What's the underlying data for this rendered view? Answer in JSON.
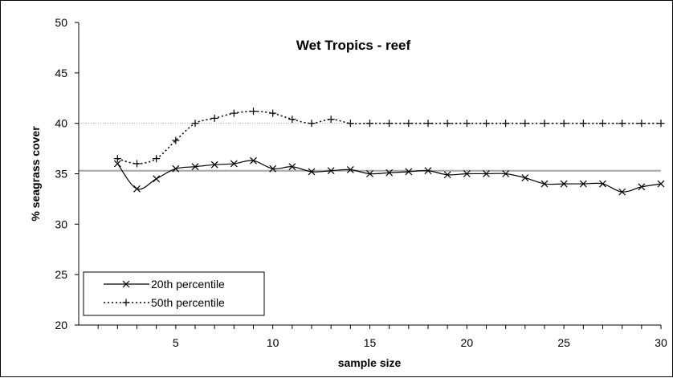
{
  "chart_data": {
    "type": "line",
    "title": "Wet Tropics - reef",
    "xlabel": "sample size",
    "ylabel": "% seagrass cover",
    "xlim": [
      0,
      30
    ],
    "ylim": [
      20,
      50
    ],
    "x_ticks": [
      5,
      10,
      15,
      20,
      25,
      30
    ],
    "y_ticks": [
      20,
      25,
      30,
      35,
      40,
      45,
      50
    ],
    "legend_position": "bottom-left",
    "reference_lines": [
      {
        "y": 35.3,
        "style": "solid",
        "color": "#a6a6a6"
      },
      {
        "y": 40.0,
        "style": "dotted",
        "color": "#a6a6a6"
      }
    ],
    "series": [
      {
        "name": "20th percentile",
        "marker": "x",
        "line_style": "solid",
        "color": "#000000",
        "x": [
          2,
          3,
          4,
          5,
          6,
          7,
          8,
          9,
          10,
          11,
          12,
          13,
          14,
          15,
          16,
          17,
          18,
          19,
          20,
          21,
          22,
          23,
          24,
          25,
          26,
          27,
          28,
          29,
          30
        ],
        "values": [
          36.0,
          33.5,
          34.5,
          35.5,
          35.7,
          35.9,
          36.0,
          36.3,
          35.5,
          35.7,
          35.2,
          35.3,
          35.4,
          35.0,
          35.1,
          35.2,
          35.3,
          34.9,
          35.0,
          35.0,
          35.0,
          34.6,
          34.0,
          34.0,
          34.0,
          34.0,
          33.2,
          33.7,
          34.0
        ]
      },
      {
        "name": "50th percentile",
        "marker": "+",
        "line_style": "dotted",
        "color": "#000000",
        "x": [
          2,
          3,
          4,
          5,
          6,
          7,
          8,
          9,
          10,
          11,
          12,
          13,
          14,
          15,
          16,
          17,
          18,
          19,
          20,
          21,
          22,
          23,
          24,
          25,
          26,
          27,
          28,
          29,
          30
        ],
        "values": [
          36.5,
          36.0,
          36.5,
          38.3,
          40.0,
          40.5,
          41.0,
          41.2,
          41.0,
          40.4,
          40.0,
          40.4,
          40.0,
          40.0,
          40.0,
          40.0,
          40.0,
          40.0,
          40.0,
          40.0,
          40.0,
          40.0,
          40.0,
          40.0,
          40.0,
          40.0,
          40.0,
          40.0,
          40.0
        ]
      }
    ]
  }
}
